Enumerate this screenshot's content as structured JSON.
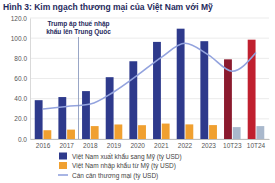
{
  "chart_data": {
    "type": "bar",
    "title": "Hình 3: Kim ngạch thương mại của Việt Nam với Mỹ",
    "categories": [
      "2016",
      "2017",
      "2018",
      "2019",
      "2020",
      "2021",
      "2022",
      "2023",
      "10T23",
      "10T24"
    ],
    "series": [
      {
        "name": "Việt Nam xuất khẩu sang Mỹ (tỷ USD)",
        "type": "bar",
        "color": "#2e3a8c",
        "colors": [
          "#2e3a8c",
          "#2e3a8c",
          "#2e3a8c",
          "#2e3a8c",
          "#2e3a8c",
          "#2e3a8c",
          "#2e3a8c",
          "#2e3a8c",
          "#8b1a2e",
          "#c0202f"
        ],
        "values": [
          38.5,
          41.6,
          47.5,
          61.3,
          77.1,
          96.3,
          109.4,
          97.0,
          79.0,
          98.5
        ]
      },
      {
        "name": "Việt Nam nhập khẩu từ Mỹ (tỷ USD)",
        "type": "bar",
        "color": "#f0a030",
        "colors": [
          "#f0a030",
          "#f0a030",
          "#f0a030",
          "#f0a030",
          "#f0a030",
          "#f0a030",
          "#f0a030",
          "#f0a030",
          "#a9b8cc",
          "#a9b8cc"
        ],
        "values": [
          8.7,
          9.3,
          12.8,
          14.4,
          13.7,
          15.3,
          14.5,
          13.8,
          11.8,
          12.8
        ]
      },
      {
        "name": "Cán cân thương mại (tỷ USD)",
        "type": "line",
        "color": "#93a3de",
        "line_style": "solid",
        "values": [
          29.8,
          32.3,
          34.7,
          46.9,
          63.4,
          81.0,
          94.9,
          83.2,
          67.2,
          85.7
        ]
      }
    ],
    "ylim": [
      0,
      120
    ],
    "yticks": [
      {
        "value": 0,
        "label": "0.0"
      },
      {
        "value": 20,
        "label": "20.0"
      },
      {
        "value": 40,
        "label": "40.0"
      },
      {
        "value": 60,
        "label": "60.0"
      },
      {
        "value": 80,
        "label": "80.0"
      },
      {
        "value": 100,
        "label": "100.0"
      },
      {
        "value": 120,
        "label": "120.0"
      }
    ],
    "grid": true,
    "legend": "bottom",
    "annotations": [
      {
        "text": [
          "Trump áp thuế nhập",
          "khẩu lên Trung Quốc"
        ],
        "x": "2018"
      }
    ]
  }
}
